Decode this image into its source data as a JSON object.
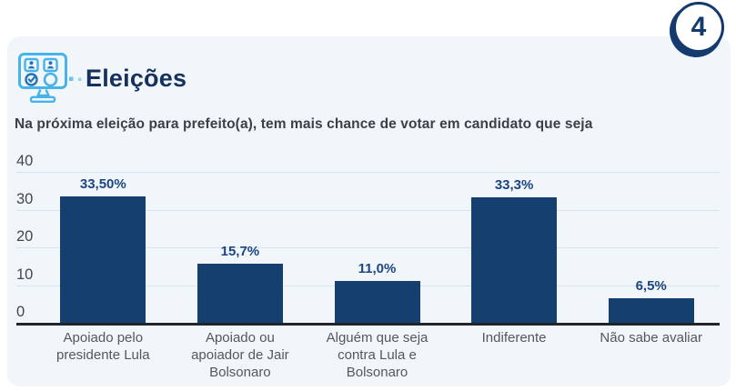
{
  "page_number": "4",
  "header": {
    "title": "Eleições",
    "icon": "ballot-machine-icon"
  },
  "question": "Na próxima eleição para prefeito(a), tem mais chance de votar em candidato que seja",
  "colors": {
    "navy": "#143a6e",
    "bar": "#153f6e",
    "value_label": "#1c4584",
    "card_background": "#f0f6fa",
    "icon_light_blue": "#47b3e8",
    "icon_dark_blue": "#2273b8",
    "gridline": "#d8e3ed",
    "axis": "#20252b"
  },
  "chart_data": {
    "type": "bar",
    "title": "Na próxima eleição para prefeito(a), tem mais chance de votar em candidato que seja",
    "categories": [
      "Apoiado pelo presidente Lula",
      "Apoiado ou apoiador de Jair Bolsonaro",
      "Alguém que seja contra Lula e Bolsonaro",
      "Indiferente",
      "Não sabe avaliar"
    ],
    "values": [
      33.5,
      15.7,
      11.0,
      33.3,
      6.5
    ],
    "value_labels": [
      "33,50%",
      "15,7%",
      "11,0%",
      "33,3%",
      "6,5%"
    ],
    "xlabel": "",
    "ylabel": "",
    "ylim": [
      0,
      40
    ],
    "y_ticks": [
      0,
      10,
      20,
      30,
      40
    ],
    "grid": true,
    "legend": "none",
    "bar_color": "#153f6e"
  }
}
